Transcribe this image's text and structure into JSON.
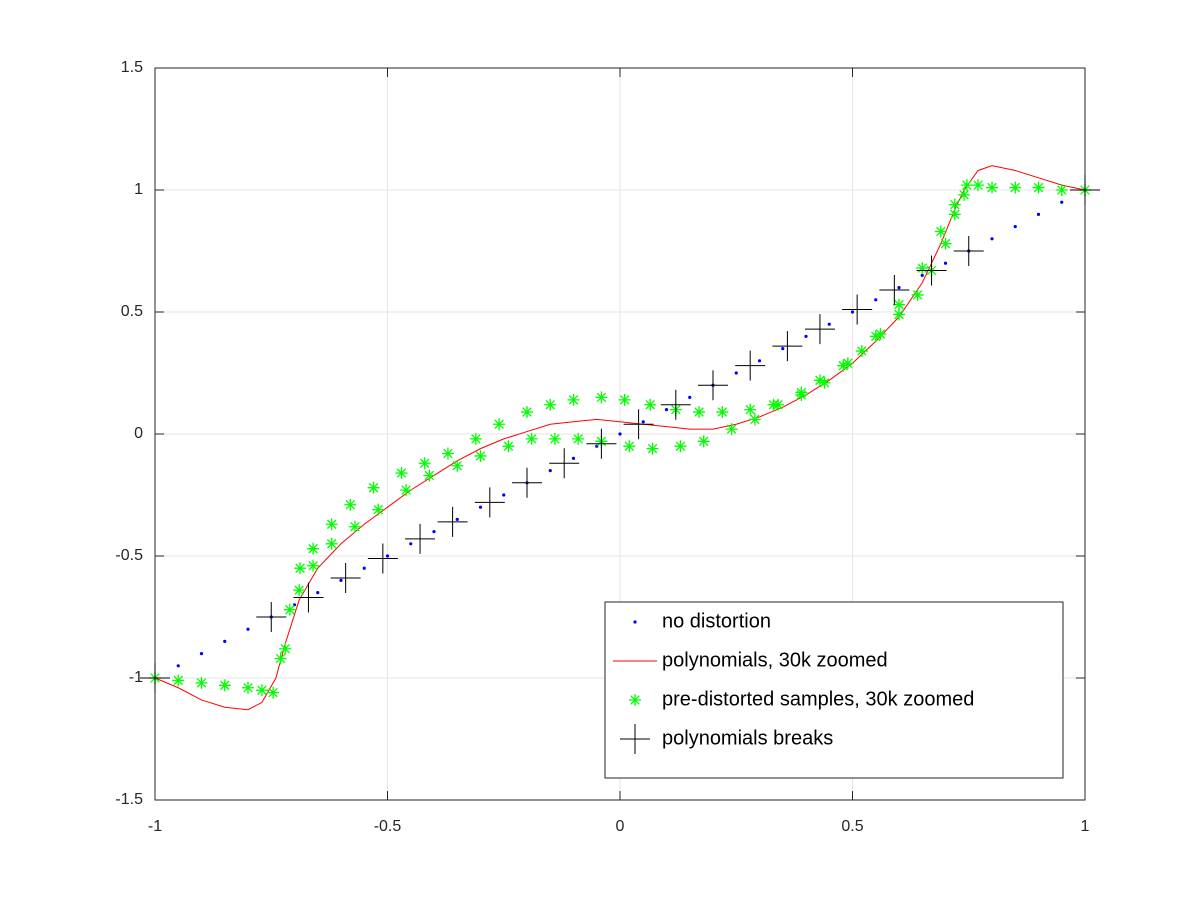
{
  "chart_data": {
    "type": "line",
    "xlim": [
      -1,
      1
    ],
    "ylim": [
      -1.5,
      1.5
    ],
    "xticks": [
      -1,
      -0.5,
      0,
      0.5,
      1
    ],
    "yticks": [
      -1.5,
      -1,
      -0.5,
      0,
      0.5,
      1,
      1.5
    ],
    "grid": true,
    "legend": "lower-right",
    "series": [
      {
        "name": "no distortion",
        "color": "#0000ff",
        "marker": ".",
        "x": [
          -1,
          -0.95,
          -0.9,
          -0.85,
          -0.8,
          -0.75,
          -0.7,
          -0.65,
          -0.6,
          -0.55,
          -0.5,
          -0.45,
          -0.4,
          -0.35,
          -0.3,
          -0.25,
          -0.2,
          -0.15,
          -0.1,
          -0.05,
          0,
          0.05,
          0.1,
          0.15,
          0.2,
          0.25,
          0.3,
          0.35,
          0.4,
          0.45,
          0.5,
          0.55,
          0.6,
          0.65,
          0.7,
          0.75,
          0.8,
          0.85,
          0.9,
          0.95,
          1
        ],
        "values": [
          -1,
          -0.95,
          -0.9,
          -0.85,
          -0.8,
          -0.75,
          -0.7,
          -0.65,
          -0.6,
          -0.55,
          -0.5,
          -0.45,
          -0.4,
          -0.35,
          -0.3,
          -0.25,
          -0.2,
          -0.15,
          -0.1,
          -0.05,
          0,
          0.05,
          0.1,
          0.15,
          0.2,
          0.25,
          0.3,
          0.35,
          0.4,
          0.45,
          0.5,
          0.55,
          0.6,
          0.65,
          0.7,
          0.75,
          0.8,
          0.85,
          0.9,
          0.95,
          1
        ]
      },
      {
        "name": "polynomials, 30k zoomed",
        "color": "#ff0000",
        "marker": "-",
        "x": [
          -1,
          -0.95,
          -0.9,
          -0.85,
          -0.8,
          -0.77,
          -0.74,
          -0.72,
          -0.69,
          -0.65,
          -0.6,
          -0.55,
          -0.5,
          -0.45,
          -0.4,
          -0.35,
          -0.3,
          -0.25,
          -0.2,
          -0.15,
          -0.1,
          -0.05,
          0,
          0.05,
          0.1,
          0.15,
          0.2,
          0.25,
          0.3,
          0.35,
          0.4,
          0.45,
          0.5,
          0.55,
          0.6,
          0.65,
          0.69,
          0.72,
          0.74,
          0.77,
          0.8,
          0.85,
          0.9,
          0.95,
          1
        ],
        "values": [
          -1,
          -1.04,
          -1.09,
          -1.12,
          -1.13,
          -1.1,
          -1.0,
          -0.86,
          -0.68,
          -0.55,
          -0.45,
          -0.37,
          -0.3,
          -0.23,
          -0.17,
          -0.11,
          -0.06,
          -0.02,
          0.01,
          0.04,
          0.05,
          0.06,
          0.05,
          0.04,
          0.03,
          0.02,
          0.02,
          0.04,
          0.07,
          0.11,
          0.16,
          0.22,
          0.29,
          0.38,
          0.48,
          0.62,
          0.78,
          0.92,
          1.0,
          1.08,
          1.1,
          1.08,
          1.05,
          1.02,
          1.0
        ]
      },
      {
        "name": "pre-distorted samples, 30k zoomed",
        "color": "#00ff00",
        "marker": "*",
        "x": [
          -1,
          -0.95,
          -0.9,
          -0.85,
          -0.8,
          -0.77,
          -0.746,
          -0.72,
          -0.69,
          -0.66,
          -0.62,
          -0.57,
          -0.52,
          -0.46,
          -0.41,
          -0.35,
          -0.3,
          -0.24,
          -0.19,
          -0.14,
          -0.09,
          -0.04,
          0.02,
          0.07,
          0.13,
          0.18,
          0.24,
          0.29,
          0.34,
          0.39,
          0.43,
          0.48,
          0.52,
          0.56,
          0.6,
          0.64,
          0.67,
          0.7,
          0.72,
          0.74,
          -0.73,
          -0.71,
          -0.688,
          -0.66,
          -0.62,
          -0.58,
          -0.53,
          -0.47,
          -0.42,
          -0.37,
          -0.31,
          -0.26,
          -0.2,
          -0.15,
          -0.1,
          -0.04,
          0.01,
          0.065,
          0.12,
          0.17,
          0.22,
          0.28,
          0.33,
          0.39,
          0.44,
          0.49,
          0.55,
          0.6,
          0.65,
          0.69,
          0.72,
          0.746,
          0.77,
          0.8,
          0.85,
          0.9,
          0.95,
          1
        ],
        "values": [
          -1,
          -1.01,
          -1.02,
          -1.03,
          -1.04,
          -1.05,
          -1.06,
          -0.88,
          -0.64,
          -0.54,
          -0.45,
          -0.38,
          -0.31,
          -0.23,
          -0.17,
          -0.13,
          -0.09,
          -0.05,
          -0.02,
          -0.02,
          -0.02,
          -0.03,
          -0.05,
          -0.06,
          -0.05,
          -0.03,
          0.02,
          0.06,
          0.12,
          0.17,
          0.22,
          0.28,
          0.34,
          0.41,
          0.49,
          0.57,
          0.67,
          0.78,
          0.9,
          0.98,
          -0.92,
          -0.72,
          -0.55,
          -0.47,
          -0.37,
          -0.29,
          -0.22,
          -0.16,
          -0.12,
          -0.08,
          -0.02,
          0.04,
          0.09,
          0.12,
          0.14,
          0.15,
          0.14,
          0.12,
          0.1,
          0.09,
          0.09,
          0.1,
          0.12,
          0.16,
          0.21,
          0.29,
          0.4,
          0.53,
          0.68,
          0.83,
          0.94,
          1.02,
          1.02,
          1.01,
          1.01,
          1.01,
          1.0,
          1.0
        ]
      },
      {
        "name": "polynomials breaks",
        "color": "#000000",
        "marker": "+",
        "x": [
          -1,
          -0.75,
          -0.67,
          -0.59,
          -0.51,
          -0.43,
          -0.36,
          -0.28,
          -0.2,
          -0.12,
          -0.04,
          0.04,
          0.12,
          0.2,
          0.28,
          0.36,
          0.43,
          0.51,
          0.59,
          0.67,
          0.75,
          1
        ],
        "values": [
          -1,
          -0.75,
          -0.67,
          -0.59,
          -0.51,
          -0.43,
          -0.36,
          -0.28,
          -0.2,
          -0.12,
          -0.04,
          0.04,
          0.12,
          0.2,
          0.28,
          0.36,
          0.43,
          0.51,
          0.59,
          0.67,
          0.75,
          1
        ]
      }
    ]
  }
}
